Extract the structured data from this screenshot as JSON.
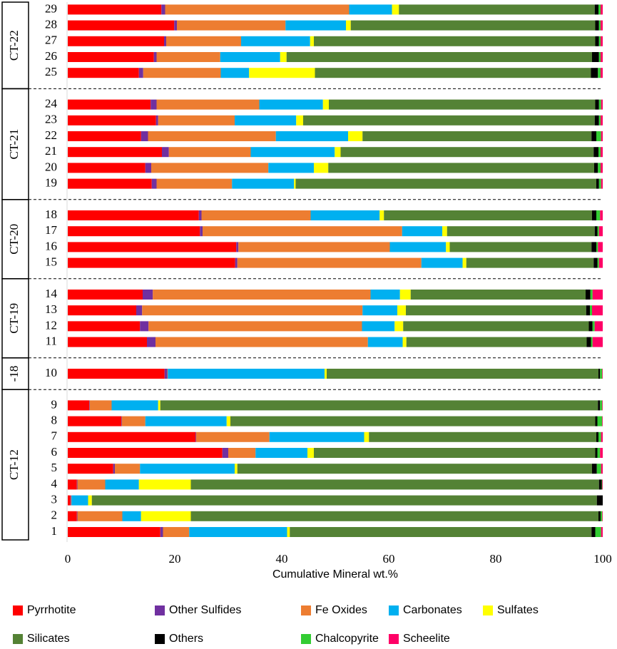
{
  "chart_data": {
    "type": "stacked_barh",
    "xlabel": "Cumulative Mineral wt.%",
    "groups": [
      {
        "name": "CT-12",
        "categories": [
          "1",
          "2",
          "3",
          "4",
          "5",
          "6",
          "7",
          "8",
          "9"
        ]
      },
      {
        "name": "-18",
        "categories": [
          "10"
        ]
      },
      {
        "name": "CT-19",
        "categories": [
          "11",
          "12",
          "13",
          "14"
        ]
      },
      {
        "name": "CT-20",
        "categories": [
          "15",
          "16",
          "17",
          "18"
        ]
      },
      {
        "name": "CT-21",
        "categories": [
          "19",
          "20",
          "21",
          "22",
          "23",
          "24"
        ]
      },
      {
        "name": "CT-22",
        "categories": [
          "25",
          "26",
          "27",
          "28",
          "29"
        ]
      }
    ],
    "xlim": [
      0,
      100
    ],
    "xticks": [
      0,
      20,
      40,
      60,
      80,
      100
    ],
    "legend": "bottom",
    "series": [
      {
        "name": "Pyrrhotite",
        "color": "#ff0000",
        "values": [
          17.3,
          1.7,
          0.5,
          1.7,
          8.5,
          28.9,
          23.9,
          10,
          4,
          18.1,
          14.8,
          13.5,
          12.8,
          14,
          31.3,
          31.5,
          24.7,
          24.5,
          15.7,
          14.5,
          17.6,
          13.7,
          16.5,
          15.5,
          13.3,
          16.1,
          18,
          19.9,
          17.5
        ]
      },
      {
        "name": "Other Sulfides",
        "color": "#7030a0",
        "values": [
          0.5,
          0.1,
          0.1,
          0.1,
          0.3,
          1.1,
          0.1,
          0.1,
          0.1,
          0.5,
          1.6,
          1.6,
          1.1,
          1.9,
          0.4,
          0.4,
          0.5,
          0.5,
          0.9,
          1.1,
          1.3,
          1.3,
          0.4,
          1.1,
          0.8,
          0.5,
          0.4,
          0.5,
          0.7
        ]
      },
      {
        "name": "Fe Oxides",
        "color": "#ed7d31",
        "values": [
          4.9,
          8.4,
          0.1,
          5.2,
          4.7,
          5.1,
          13.7,
          4.4,
          4.1,
          0.1,
          39.7,
          39.9,
          41.2,
          40.7,
          34.4,
          28.3,
          37.3,
          20.4,
          14.1,
          21.9,
          15.3,
          23.9,
          14.3,
          19.2,
          14.5,
          11.9,
          14,
          20.3,
          34.4
        ]
      },
      {
        "name": "Carbonates",
        "color": "#00b0f0",
        "values": [
          18.3,
          3.5,
          3.1,
          6.3,
          17.7,
          9.7,
          17.7,
          15.2,
          8.7,
          29.3,
          6.5,
          6.1,
          6.5,
          5.5,
          7.7,
          10.5,
          7.5,
          12.9,
          11.6,
          8.5,
          15.7,
          13.5,
          11.5,
          11.9,
          5.3,
          11.2,
          12.9,
          11.3,
          8.0
        ]
      },
      {
        "name": "Sulfates",
        "color": "#ffff00",
        "values": [
          0.5,
          9.3,
          0.7,
          9.7,
          0.5,
          1.2,
          0.9,
          0.7,
          0.4,
          0.4,
          0.7,
          1.6,
          1.6,
          2,
          0.7,
          0.7,
          0.9,
          0.8,
          0.3,
          2.7,
          1.1,
          2.7,
          1.3,
          1.1,
          12.3,
          1.2,
          0.7,
          0.9,
          1.3
        ]
      },
      {
        "name": "Silicates",
        "color": "#548235",
        "values": [
          56.4,
          76.2,
          94.4,
          76.3,
          66.3,
          52.6,
          42.5,
          68.2,
          81.8,
          50.8,
          33.7,
          34.7,
          33.7,
          32.7,
          23.8,
          26.5,
          27.6,
          38.9,
          56.2,
          49.7,
          47.3,
          42.8,
          54.5,
          49.8,
          51.6,
          57.1,
          52.6,
          45.7,
          36.6
        ]
      },
      {
        "name": "Others",
        "color": "#000000",
        "values": [
          0.7,
          0.4,
          1.1,
          0.5,
          0.9,
          0.4,
          0.4,
          0.4,
          0.4,
          0.3,
          0.8,
          0.7,
          0.7,
          0.9,
          0.7,
          0.9,
          0.5,
          0.8,
          0.5,
          0.7,
          0.9,
          0.9,
          0.8,
          0.7,
          1.3,
          1.3,
          0.7,
          0.7,
          0.7
        ]
      },
      {
        "name": "Chalcopyrite",
        "color": "#33cc33",
        "values": [
          1.1,
          0.3,
          0,
          0.1,
          0.8,
          0.5,
          0.5,
          0.9,
          0.4,
          0.4,
          0.3,
          0.4,
          0.4,
          0.4,
          0.3,
          0.3,
          0.3,
          0.7,
          0.4,
          0.5,
          0.4,
          0.9,
          0.3,
          0.4,
          0.5,
          0.3,
          0.3,
          0.3,
          0.4
        ]
      },
      {
        "name": "Scheelite",
        "color": "#ff0066",
        "values": [
          0.3,
          0.1,
          0,
          0.1,
          0.3,
          0.5,
          0.3,
          0.1,
          0.1,
          0.1,
          1.9,
          1.5,
          2,
          1.9,
          0.7,
          0.9,
          0.7,
          0.5,
          0.3,
          0.4,
          0.4,
          0.3,
          0.4,
          0.3,
          0.4,
          0.4,
          0.4,
          0.4,
          0.4
        ]
      }
    ]
  }
}
